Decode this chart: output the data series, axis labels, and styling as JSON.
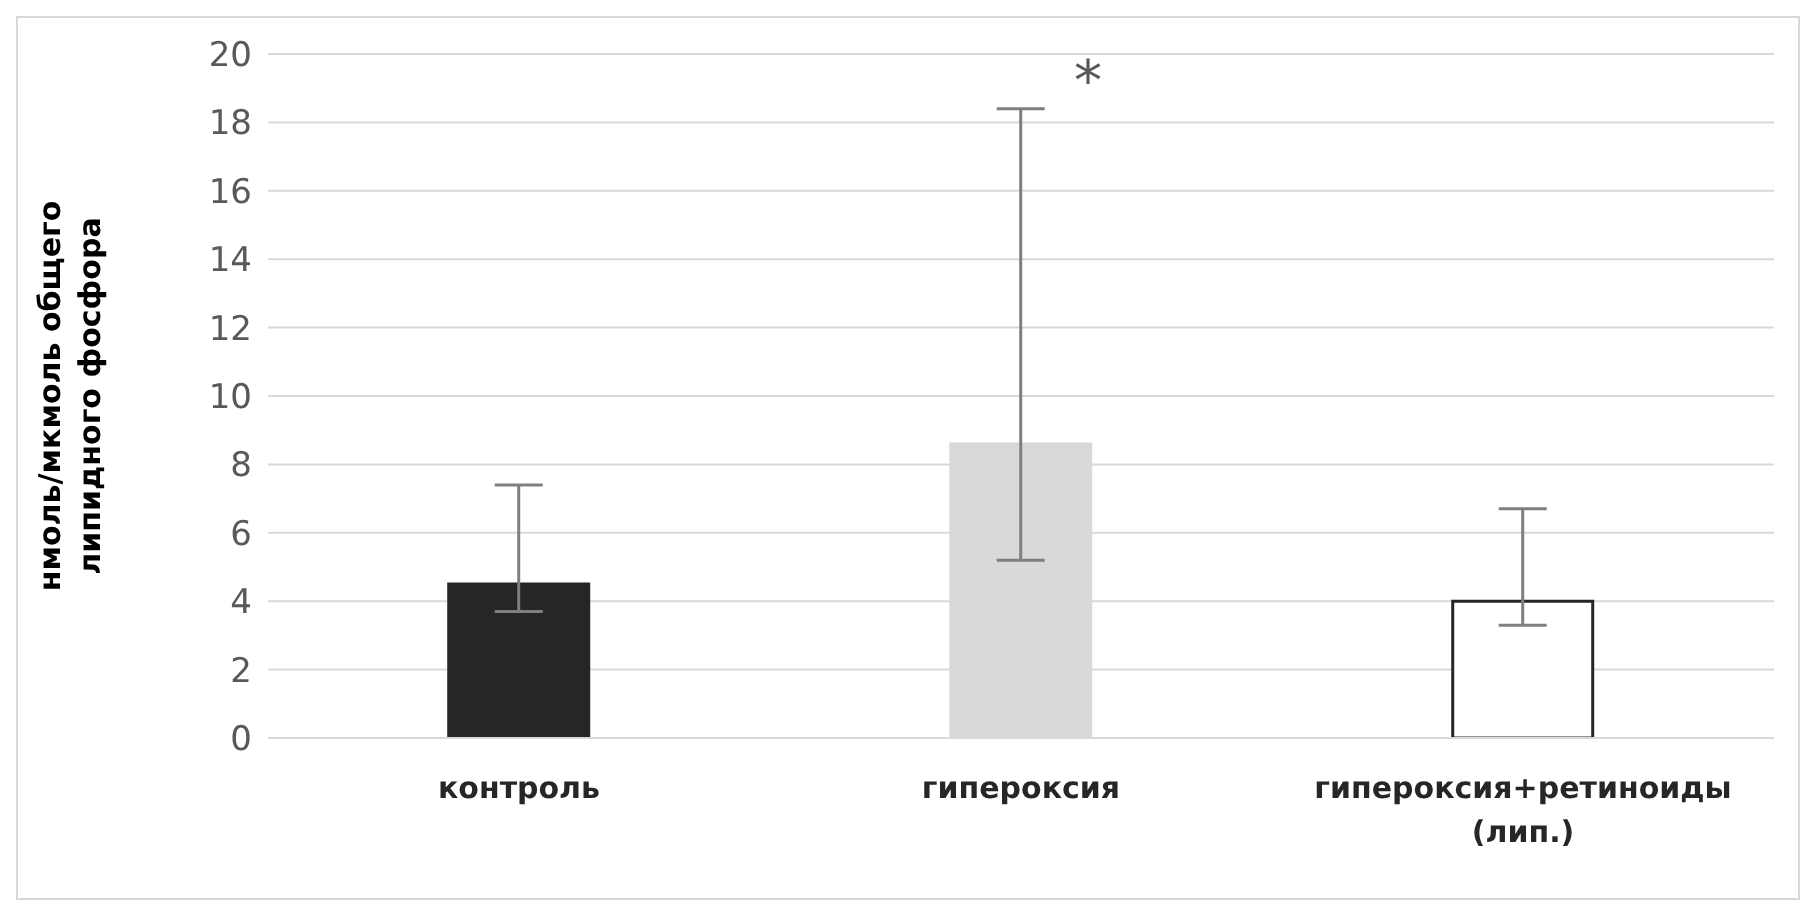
{
  "chart_data": {
    "type": "bar",
    "ylabel": "нмоль/мкмоль общего липидного фосфора",
    "categories": [
      "контроль",
      "гипероксия",
      "гипероксия+ретиноиды (лип.)"
    ],
    "values": [
      4.5,
      8.6,
      4.0
    ],
    "colors": [
      "#262626",
      "#d9d9d9",
      "#ffffff"
    ],
    "errors": [
      [
        3.7,
        7.4
      ],
      [
        5.2,
        18.4
      ],
      [
        3.3,
        6.7
      ]
    ],
    "ylim": [
      0,
      20
    ],
    "yticks": [
      0,
      2,
      4,
      6,
      8,
      10,
      12,
      14,
      16,
      18,
      20
    ],
    "grid": "y",
    "annotations": [
      "*"
    ]
  }
}
